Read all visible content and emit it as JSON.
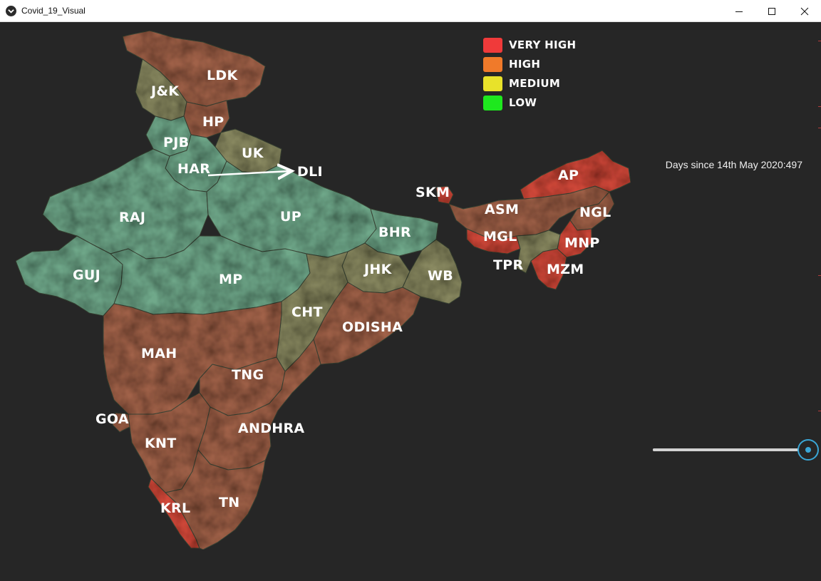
{
  "window": {
    "title": "Covid_19_Visual",
    "minimize_icon": "minimize-icon",
    "maximize_icon": "maximize-icon",
    "close_icon": "close-icon"
  },
  "legend": {
    "items": [
      {
        "label": "VERY HIGH",
        "color": "#f03a3a"
      },
      {
        "label": "HIGH",
        "color": "#f07a2a"
      },
      {
        "label": "MEDIUM",
        "color": "#e8e22a"
      },
      {
        "label": "LOW",
        "color": "#1ee81e"
      }
    ]
  },
  "days": {
    "prefix": "Days since 14th May 2020:",
    "value": "497"
  },
  "slider": {
    "position_fraction": 1.0
  },
  "map": {
    "colors": {
      "low": "#6fa88a",
      "medium": "#8a8a62",
      "high": "#a0624a",
      "very_high": "#d2483a",
      "border": "#3f4a3a"
    },
    "states": [
      {
        "id": "ldk",
        "label": "LDK",
        "level": "high"
      },
      {
        "id": "jk",
        "label": "J&K",
        "level": "medium"
      },
      {
        "id": "hp",
        "label": "HP",
        "level": "high"
      },
      {
        "id": "pjb",
        "label": "PJB",
        "level": "low"
      },
      {
        "id": "uk",
        "label": "UK",
        "level": "medium"
      },
      {
        "id": "har",
        "label": "HAR",
        "level": "low"
      },
      {
        "id": "dli",
        "label": "DLI",
        "level": "low"
      },
      {
        "id": "raj",
        "label": "RAJ",
        "level": "low"
      },
      {
        "id": "up",
        "label": "UP",
        "level": "low"
      },
      {
        "id": "bhr",
        "label": "BHR",
        "level": "low"
      },
      {
        "id": "guj",
        "label": "GUJ",
        "level": "low"
      },
      {
        "id": "mp",
        "label": "MP",
        "level": "low"
      },
      {
        "id": "jhk",
        "label": "JHK",
        "level": "medium"
      },
      {
        "id": "wb",
        "label": "WB",
        "level": "medium"
      },
      {
        "id": "cht",
        "label": "CHT",
        "level": "medium"
      },
      {
        "id": "odisha",
        "label": "ODISHA",
        "level": "high"
      },
      {
        "id": "mah",
        "label": "MAH",
        "level": "high"
      },
      {
        "id": "tng",
        "label": "TNG",
        "level": "high"
      },
      {
        "id": "goa",
        "label": "GOA",
        "level": "high"
      },
      {
        "id": "knt",
        "label": "KNT",
        "level": "high"
      },
      {
        "id": "andhra",
        "label": "ANDHRA",
        "level": "high"
      },
      {
        "id": "krl",
        "label": "KRL",
        "level": "very_high"
      },
      {
        "id": "tn",
        "label": "TN",
        "level": "high"
      },
      {
        "id": "skm",
        "label": "SKM",
        "level": "very_high"
      },
      {
        "id": "ap",
        "label": "AP",
        "level": "very_high"
      },
      {
        "id": "asm",
        "label": "ASM",
        "level": "high"
      },
      {
        "id": "ngl",
        "label": "NGL",
        "level": "high"
      },
      {
        "id": "mgl",
        "label": "MGL",
        "level": "very_high"
      },
      {
        "id": "mnp",
        "label": "MNP",
        "level": "very_high"
      },
      {
        "id": "tpr",
        "label": "TPR",
        "level": "medium"
      },
      {
        "id": "mzm",
        "label": "MZM",
        "level": "very_high"
      }
    ]
  }
}
